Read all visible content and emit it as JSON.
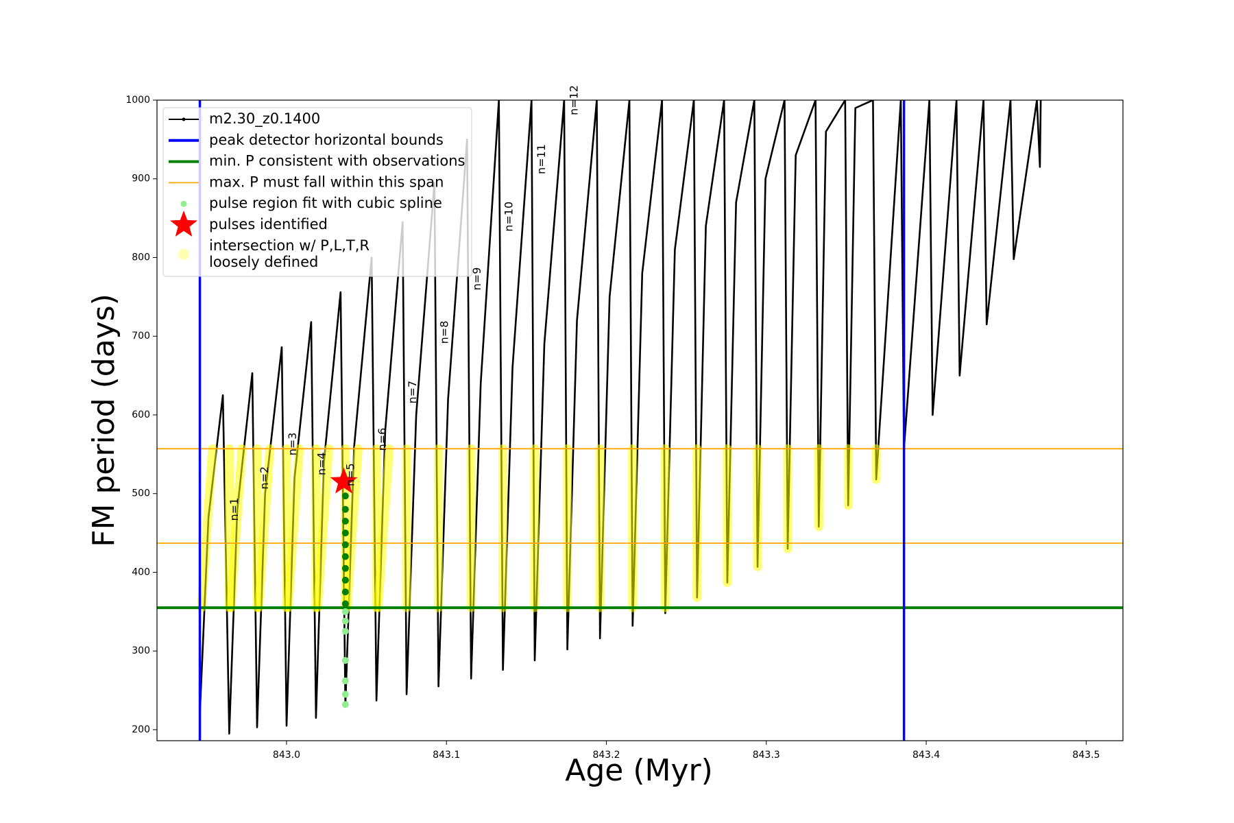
{
  "chart_data": {
    "type": "line",
    "x_label": "Age (Myr)",
    "y_label": "FM period (days)",
    "xlim": [
      842.919,
      843.523
    ],
    "ylim": [
      186,
      1000
    ],
    "xticks": [
      {
        "value": 843,
        "label": "843.0"
      },
      {
        "value": 843.1,
        "label": "843.1"
      },
      {
        "value": 843.2,
        "label": "843.2"
      },
      {
        "value": 843.3,
        "label": "843.3"
      },
      {
        "value": 843.4,
        "label": "843.4"
      },
      {
        "value": 843.5,
        "label": "843.5"
      }
    ],
    "yticks": [
      200,
      300,
      400,
      500,
      600,
      700,
      800,
      900,
      1000
    ],
    "series": [
      {
        "name": "m2.30_z0.1400",
        "type": "line",
        "color": "#000000",
        "x": [
          842.9458,
          842.9512,
          842.9602,
          842.9642,
          842.9692,
          842.9786,
          842.9816,
          842.9866,
          842.997,
          843.0,
          843.005,
          843.0154,
          843.0184,
          843.0234,
          843.0338,
          843.0368,
          843.0423,
          843.0532,
          843.0562,
          843.0617,
          843.0726,
          843.0751,
          843.0811,
          843.0925,
          843.095,
          843.101,
          843.1129,
          843.1154,
          843.1214,
          843.1328,
          843.1353,
          843.1413,
          843.1532,
          843.1552,
          843.1612,
          843.1736,
          843.1756,
          843.1816,
          843.194,
          843.196,
          843.202,
          843.2144,
          843.2164,
          843.2224,
          843.2348,
          843.2368,
          843.2428,
          843.2547,
          843.2567,
          843.2622,
          843.2736,
          843.2756,
          843.2811,
          843.2925,
          843.2945,
          843.2995,
          843.3114,
          843.3134,
          843.3184,
          843.3308,
          843.3328,
          843.3373,
          843.3493,
          843.3512,
          843.3557,
          843.3667,
          843.3687,
          843.3841,
          843.3861,
          843.402,
          843.404,
          843.4189,
          843.4209,
          843.4358,
          843.4378,
          843.4527,
          843.4547,
          843.4692,
          843.4711,
          843.4716
        ],
        "values": [
          220,
          470,
          625,
          195,
          480,
          653,
          203,
          500,
          686,
          205,
          520,
          718,
          215,
          540,
          756,
          230,
          560,
          800,
          237,
          580,
          845,
          245,
          600,
          895,
          255,
          620,
          950,
          265,
          640,
          1000,
          276,
          660,
          1000,
          288,
          690,
          1000,
          302,
          720,
          1000,
          316,
          750,
          1000,
          332,
          780,
          1000,
          348,
          810,
          1000,
          368,
          840,
          1000,
          387,
          870,
          1000,
          407,
          900,
          1000,
          430,
          930,
          1000,
          458,
          960,
          1000,
          485,
          990,
          1000,
          518,
          1000,
          557,
          1000,
          600,
          1000,
          650,
          1000,
          715,
          1000,
          798,
          1000,
          915,
          1000
        ]
      },
      {
        "name": "peak detector horizontal bounds",
        "type": "vline",
        "color": "#0000ff",
        "x": [
          842.9458,
          843.3861
        ]
      },
      {
        "name": "min. P consistent with observations",
        "type": "hline",
        "color": "#008000",
        "values": [
          355
        ]
      },
      {
        "name": "max. P must fall within this span",
        "type": "hline",
        "color": "#ffa500",
        "values": [
          557,
          437
        ]
      },
      {
        "name": "pulse region fit with cubic spline",
        "type": "scatter",
        "colors": [
          "#90ee90",
          "#90ee90",
          "#90ee90",
          "#90ee90",
          "#90ee90",
          "#90ee90",
          "#90ee90",
          "#008000",
          "#008000",
          "#008000",
          "#008000",
          "#008000",
          "#008000",
          "#008000",
          "#008000",
          "#008000",
          "#008000"
        ],
        "x": [
          843.0368,
          843.0368,
          843.0368,
          843.0368,
          843.0368,
          843.0368,
          843.0368,
          843.0368,
          843.0368,
          843.0368,
          843.0368,
          843.0368,
          843.0368,
          843.0368,
          843.0368,
          843.0368,
          843.0368
        ],
        "values": [
          232,
          245,
          262,
          288,
          325,
          338,
          350,
          360,
          375,
          390,
          405,
          420,
          435,
          450,
          465,
          480,
          497
        ]
      },
      {
        "name": "pulses identified",
        "type": "star",
        "color": "#ff0000",
        "x": [
          843.0358
        ],
        "values": [
          515
        ]
      },
      {
        "name": "intersection w/ P,L,T,R\nloosely defined",
        "type": "segments",
        "color": "#ffff00",
        "segments": [
          [
            842.9468,
            355,
            842.9537,
            557
          ],
          [
            842.9652,
            355,
            842.9721,
            557
          ],
          [
            842.9826,
            355,
            842.9896,
            557
          ],
          [
            843.001,
            355,
            843.008,
            557
          ],
          [
            843.0194,
            355,
            843.0264,
            557
          ],
          [
            843.0378,
            355,
            843.0448,
            557
          ],
          [
            843.0572,
            355,
            843.0642,
            557
          ],
          [
            842.9642,
            355,
            842.9642,
            557
          ],
          [
            842.9816,
            355,
            842.9816,
            557
          ],
          [
            843.0,
            355,
            843.0,
            557
          ],
          [
            843.0184,
            355,
            843.0184,
            557
          ],
          [
            843.0368,
            355,
            843.0368,
            557
          ],
          [
            843.0562,
            355,
            843.0562,
            557
          ],
          [
            843.0751,
            355,
            843.0751,
            557
          ],
          [
            843.095,
            355,
            843.095,
            557
          ],
          [
            843.1154,
            355,
            843.1154,
            557
          ],
          [
            843.1353,
            355,
            843.1353,
            557
          ],
          [
            843.1552,
            355,
            843.1552,
            557
          ],
          [
            843.1756,
            355,
            843.1756,
            557
          ],
          [
            843.196,
            355,
            843.196,
            557
          ],
          [
            843.2164,
            355,
            843.2164,
            557
          ],
          [
            843.2368,
            355,
            843.2368,
            557
          ],
          [
            843.2567,
            368,
            843.2567,
            557
          ],
          [
            843.2756,
            387,
            843.2756,
            557
          ],
          [
            843.2945,
            407,
            843.2945,
            557
          ],
          [
            843.3134,
            430,
            843.3134,
            557
          ],
          [
            843.3328,
            458,
            843.3328,
            557
          ],
          [
            843.3512,
            485,
            843.3512,
            557
          ],
          [
            843.3687,
            518,
            843.3687,
            557
          ]
        ]
      }
    ],
    "annotations": [
      {
        "text": "n=1",
        "x": 842.9677,
        "y": 480
      },
      {
        "text": "n=2",
        "x": 842.9866,
        "y": 520
      },
      {
        "text": "n=3",
        "x": 843.004,
        "y": 563
      },
      {
        "text": "n=4",
        "x": 843.0224,
        "y": 538
      },
      {
        "text": "n=5",
        "x": 843.0403,
        "y": 524
      },
      {
        "text": "n=6",
        "x": 843.0602,
        "y": 569
      },
      {
        "text": "n=7",
        "x": 843.0791,
        "y": 629
      },
      {
        "text": "n=8",
        "x": 843.099,
        "y": 705
      },
      {
        "text": "n=9",
        "x": 843.1194,
        "y": 773
      },
      {
        "text": "n=10",
        "x": 843.1393,
        "y": 852
      },
      {
        "text": "n=11",
        "x": 843.1597,
        "y": 925
      },
      {
        "text": "n=12",
        "x": 843.1801,
        "y": 1000
      }
    ],
    "legend": "upper left"
  }
}
